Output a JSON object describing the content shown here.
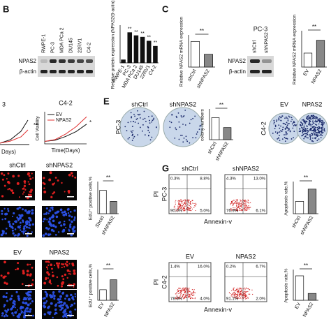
{
  "panels": {
    "B": {
      "label": "B",
      "lanes": [
        "RWPE-1",
        "PC-3",
        "MDA PCa 2",
        "DU145",
        "22RV1",
        "C4-2"
      ],
      "rows": [
        "NPAS2",
        "β-actin"
      ]
    },
    "C": {
      "label": "C",
      "cell": "PC-3",
      "lanes": [
        "shCtrl",
        "shNPAS2"
      ],
      "rows": [
        "NPAS2",
        "β-actin"
      ]
    },
    "left": {
      "title": "3",
      "sig": "**",
      "x_label": "Days)"
    },
    "E": {
      "label": "E",
      "top": [
        "shCtrl",
        "shNPAS2"
      ],
      "side": "PC-3",
      "top2": [
        "EV",
        "NPAS2"
      ],
      "side2": "C4-2"
    },
    "D": {
      "top": [
        "shCtrl",
        "shNPAS2"
      ],
      "top2": [
        "EV",
        "NPAS2"
      ]
    },
    "G": {
      "label": "G",
      "y_label": "PI",
      "x_label": "Annexin-v",
      "groups": [
        {
          "cell": "PC-3",
          "cols": [
            "shCtrl",
            "shNPAS2"
          ],
          "quadrants": [
            [
              "0.3%",
              "8.8%",
              "90.0%",
              "5.0%"
            ],
            [
              "4.3%",
              "13.0%",
              "76.9%",
              "6.1%"
            ]
          ]
        },
        {
          "cell": "C4-2",
          "cols": [
            "EV",
            "NPAS2"
          ],
          "quadrants": [
            [
              "1.4%",
              "16.0%",
              "78.6%",
              "4.0%"
            ],
            [
              "0.2%",
              "6.7%",
              "91.1%",
              "2.0%"
            ]
          ]
        }
      ]
    }
  },
  "charts": [
    {
      "type": "bar",
      "categories": [
        "RWPE-1",
        "PC-3",
        "MDA PCa 2",
        "DU145",
        "22RV1",
        "C4-2"
      ],
      "values": [
        0.1,
        1.0,
        0.9,
        0.85,
        0.72,
        0.55
      ],
      "ylim": [
        0,
        1.2
      ],
      "y_label": "Relative protein expression (NPAS2/β-actin)",
      "sig": [
        null,
        "**",
        "**",
        "**",
        "**",
        "**"
      ],
      "colors": [
        "#111111",
        "#111111",
        "#111111",
        "#111111",
        "#111111",
        "#111111"
      ]
    },
    {
      "type": "bar",
      "categories": [
        "shCtrl",
        "shNPAS2"
      ],
      "values": [
        1.0,
        0.5
      ],
      "ylim": [
        0,
        1.2
      ],
      "y_label": "Relative NPAS2 mRNA expression",
      "sig": "**",
      "colors": [
        "#ffffff",
        "#888888"
      ]
    },
    {
      "type": "bar",
      "categories": [
        "EV",
        "NPAS2"
      ],
      "values": [
        0.6,
        1.15
      ],
      "ylim": [
        0,
        1.5
      ],
      "y_label": "Relative NPAS2 mRNA expression",
      "sig": "**",
      "colors": [
        "#ffffff",
        "#888888"
      ]
    },
    {
      "type": "line",
      "title": "C4-2",
      "x": [
        0,
        1,
        2,
        3,
        4
      ],
      "xlim": [
        0,
        4
      ],
      "ylim": [
        0,
        2.5
      ],
      "y_label": "Cell Viability",
      "x_label": "Time(Days)",
      "sig": "*",
      "series": [
        {
          "name": "EV",
          "color": "#111111",
          "values": [
            0.2,
            0.3,
            0.6,
            1.0,
            1.6
          ]
        },
        {
          "name": "NPAS2",
          "color": "#e03030",
          "values": [
            0.2,
            0.35,
            0.8,
            1.4,
            2.2
          ]
        }
      ]
    },
    {
      "type": "bar",
      "categories": [
        "shCtrl",
        "shNPAS2"
      ],
      "values": [
        60,
        33
      ],
      "ylim": [
        0,
        80
      ],
      "y_label": "colony numbers",
      "sig": "**",
      "colors": [
        "#ffffff",
        "#888888"
      ]
    },
    {
      "type": "bar",
      "categories": [
        "Shctrl",
        "shNPAS2"
      ],
      "values": [
        38,
        20
      ],
      "ylim": [
        0,
        50
      ],
      "y_label": "EdU⁺ positive cells,%",
      "sig": "**",
      "colors": [
        "#ffffff",
        "#888888"
      ]
    },
    {
      "type": "bar",
      "categories": [
        "EV",
        "NPAS2"
      ],
      "values": [
        18,
        35
      ],
      "ylim": [
        0,
        50
      ],
      "y_label": "EdU⁺ positive cells,%",
      "sig": "**",
      "colors": [
        "#ffffff",
        "#888888"
      ]
    },
    {
      "type": "bar",
      "categories": [
        "shCtrl",
        "shNPAS2"
      ],
      "values": [
        10,
        20
      ],
      "ylim": [
        0,
        25
      ],
      "y_label": "Apoptosis rate,%",
      "sig": "**",
      "colors": [
        "#ffffff",
        "#888888"
      ]
    },
    {
      "type": "bar",
      "categories": [
        "EV",
        "NPAS2"
      ],
      "values": [
        25,
        7
      ],
      "ylim": [
        0,
        30
      ],
      "y_label": "Apoptosis rate,%",
      "sig": "**",
      "colors": [
        "#ffffff",
        "#888888"
      ]
    }
  ]
}
